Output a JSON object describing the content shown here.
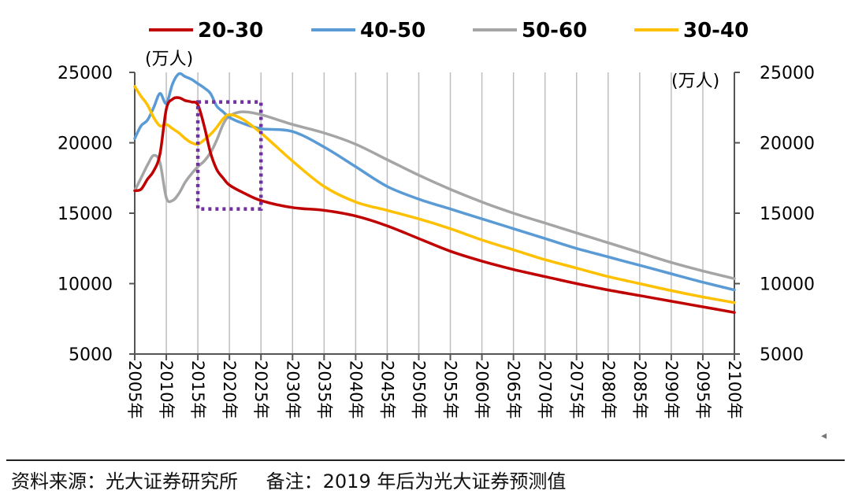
{
  "source": {
    "label": "资料来源：光大证券研究所",
    "note": "备注：2019 年后为光大证券预测值"
  },
  "nav_marker": "◂",
  "chart_data": {
    "type": "line",
    "y_unit_left": "(万人)",
    "y_unit_right": "(万人)",
    "ylim": [
      5000,
      25000
    ],
    "y_ticks": [
      "25000",
      "20000",
      "15000",
      "10000",
      "5000"
    ],
    "xlim": [
      2005,
      2100
    ],
    "x_ticks": [
      "2005年",
      "2010年",
      "2015年",
      "2020年",
      "2025年",
      "2030年",
      "2035年",
      "2040年",
      "2045年",
      "2050年",
      "2055年",
      "2060年",
      "2065年",
      "2070年",
      "2075年",
      "2080年",
      "2085年",
      "2090年",
      "2095年",
      "2100年"
    ],
    "grid": "vertical",
    "legend_position": "top",
    "highlight_box": {
      "x": [
        2015,
        2025
      ],
      "y": [
        15300,
        22900
      ],
      "color": "#7030a0"
    },
    "series": [
      {
        "name": "20-30",
        "color": "#c00000",
        "points": [
          [
            2005,
            16600
          ],
          [
            2006,
            16700
          ],
          [
            2007,
            17400
          ],
          [
            2008,
            18000
          ],
          [
            2009,
            19200
          ],
          [
            2010,
            22400
          ],
          [
            2011,
            23100
          ],
          [
            2012,
            23200
          ],
          [
            2013,
            23000
          ],
          [
            2014,
            22900
          ],
          [
            2015,
            22700
          ],
          [
            2016,
            21200
          ],
          [
            2017,
            19300
          ],
          [
            2018,
            18100
          ],
          [
            2019,
            17500
          ],
          [
            2020,
            17000
          ],
          [
            2022,
            16500
          ],
          [
            2025,
            15900
          ],
          [
            2030,
            15400
          ],
          [
            2035,
            15200
          ],
          [
            2040,
            14800
          ],
          [
            2045,
            14100
          ],
          [
            2050,
            13200
          ],
          [
            2055,
            12300
          ],
          [
            2060,
            11600
          ],
          [
            2065,
            11000
          ],
          [
            2070,
            10500
          ],
          [
            2075,
            10000
          ],
          [
            2080,
            9550
          ],
          [
            2085,
            9150
          ],
          [
            2090,
            8750
          ],
          [
            2095,
            8350
          ],
          [
            2100,
            7950
          ]
        ]
      },
      {
        "name": "40-50",
        "color": "#5b9bd5",
        "points": [
          [
            2005,
            20300
          ],
          [
            2006,
            21200
          ],
          [
            2007,
            21600
          ],
          [
            2008,
            22500
          ],
          [
            2009,
            23500
          ],
          [
            2010,
            22800
          ],
          [
            2011,
            24200
          ],
          [
            2012,
            24900
          ],
          [
            2013,
            24700
          ],
          [
            2014,
            24500
          ],
          [
            2015,
            24200
          ],
          [
            2016,
            23900
          ],
          [
            2017,
            23500
          ],
          [
            2018,
            22600
          ],
          [
            2019,
            22200
          ],
          [
            2020,
            21800
          ],
          [
            2022,
            21400
          ],
          [
            2025,
            21000
          ],
          [
            2030,
            20800
          ],
          [
            2035,
            19700
          ],
          [
            2040,
            18300
          ],
          [
            2045,
            16900
          ],
          [
            2050,
            16000
          ],
          [
            2055,
            15300
          ],
          [
            2060,
            14600
          ],
          [
            2065,
            13900
          ],
          [
            2070,
            13200
          ],
          [
            2075,
            12500
          ],
          [
            2080,
            11900
          ],
          [
            2085,
            11300
          ],
          [
            2090,
            10700
          ],
          [
            2095,
            10100
          ],
          [
            2100,
            9550
          ]
        ]
      },
      {
        "name": "50-60",
        "color": "#a5a5a5",
        "points": [
          [
            2005,
            16600
          ],
          [
            2006,
            17500
          ],
          [
            2007,
            18400
          ],
          [
            2008,
            19100
          ],
          [
            2009,
            18600
          ],
          [
            2010,
            16100
          ],
          [
            2011,
            15900
          ],
          [
            2012,
            16400
          ],
          [
            2013,
            17200
          ],
          [
            2014,
            17800
          ],
          [
            2015,
            18300
          ],
          [
            2016,
            18700
          ],
          [
            2017,
            19300
          ],
          [
            2018,
            20200
          ],
          [
            2019,
            21300
          ],
          [
            2020,
            21900
          ],
          [
            2022,
            22200
          ],
          [
            2025,
            22000
          ],
          [
            2030,
            21300
          ],
          [
            2035,
            20700
          ],
          [
            2040,
            19900
          ],
          [
            2045,
            18800
          ],
          [
            2050,
            17700
          ],
          [
            2055,
            16700
          ],
          [
            2060,
            15800
          ],
          [
            2065,
            15000
          ],
          [
            2070,
            14300
          ],
          [
            2075,
            13600
          ],
          [
            2080,
            12900
          ],
          [
            2085,
            12200
          ],
          [
            2090,
            11500
          ],
          [
            2095,
            10900
          ],
          [
            2100,
            10350
          ]
        ]
      },
      {
        "name": "30-40",
        "color": "#ffc000",
        "points": [
          [
            2005,
            24000
          ],
          [
            2006,
            23300
          ],
          [
            2007,
            22700
          ],
          [
            2008,
            21800
          ],
          [
            2009,
            21200
          ],
          [
            2010,
            21300
          ],
          [
            2011,
            21000
          ],
          [
            2012,
            20700
          ],
          [
            2013,
            20300
          ],
          [
            2014,
            20000
          ],
          [
            2015,
            19900
          ],
          [
            2016,
            20200
          ],
          [
            2017,
            20600
          ],
          [
            2018,
            21100
          ],
          [
            2019,
            21700
          ],
          [
            2020,
            22000
          ],
          [
            2022,
            21700
          ],
          [
            2025,
            20700
          ],
          [
            2030,
            18700
          ],
          [
            2035,
            16900
          ],
          [
            2040,
            15800
          ],
          [
            2045,
            15200
          ],
          [
            2050,
            14600
          ],
          [
            2055,
            13900
          ],
          [
            2060,
            13100
          ],
          [
            2065,
            12400
          ],
          [
            2070,
            11700
          ],
          [
            2075,
            11100
          ],
          [
            2080,
            10500
          ],
          [
            2085,
            10000
          ],
          [
            2090,
            9500
          ],
          [
            2095,
            9050
          ],
          [
            2100,
            8650
          ]
        ]
      }
    ]
  }
}
